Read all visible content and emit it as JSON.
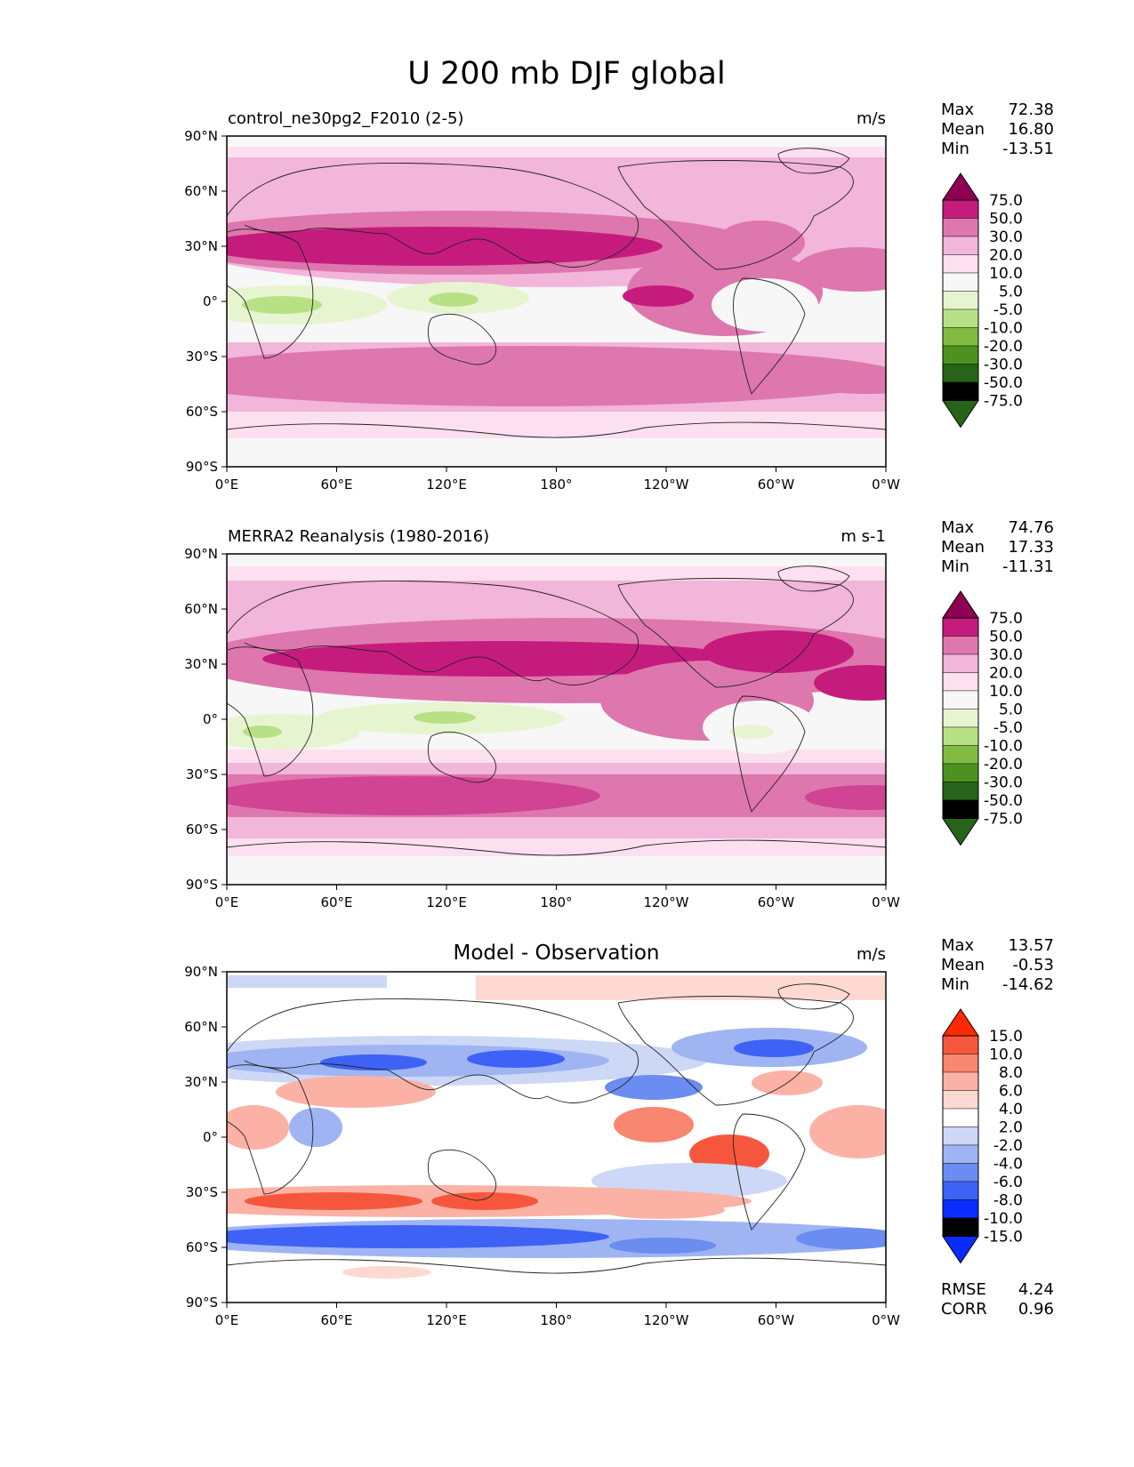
{
  "figure_title": "U 200 mb DJF global",
  "axes": {
    "lat_ticks": [
      "90°N",
      "60°N",
      "30°N",
      "0°",
      "30°S",
      "60°S",
      "90°S"
    ],
    "lon_ticks": [
      "0°E",
      "60°E",
      "120°E",
      "180°",
      "120°W",
      "60°W",
      "0°W"
    ]
  },
  "colors": {
    "pink_scale": [
      "#276419",
      "#4d9221",
      "#7fbc41",
      "#b8e186",
      "#e6f5d0",
      "#f7f7f7",
      "#fde0ef",
      "#f1b6da",
      "#de77ae",
      "#c51b7d",
      "#8e0152"
    ],
    "diff_scale": [
      "#0b2cff",
      "#3d62f5",
      "#6b8cf0",
      "#9fb4f2",
      "#cdd8f7",
      "#ffffff",
      "#fdd9d2",
      "#fbb2a5",
      "#f98670",
      "#f6573c",
      "#ff2a00"
    ],
    "coast": "#222222"
  },
  "chart_data": [
    {
      "type": "heatmap",
      "title": "control_ne30pg2_F2010 (2-5)",
      "units": "m/s",
      "stats": [
        {
          "label": "Max",
          "value": "72.38"
        },
        {
          "label": "Mean",
          "value": "16.80"
        },
        {
          "label": "Min",
          "value": "-13.51"
        }
      ],
      "colorbar_labels": [
        "75.0",
        "50.0",
        "30.0",
        "20.0",
        "10.0",
        "5.0",
        "-5.0",
        "-10.0",
        "-20.0",
        "-30.0",
        "-50.0",
        "-75.0"
      ],
      "xlim": [
        0,
        360
      ],
      "ylim": [
        -90,
        90
      ]
    },
    {
      "type": "heatmap",
      "title": "MERRA2 Reanalysis (1980-2016)",
      "units": "m s-1",
      "stats": [
        {
          "label": "Max",
          "value": "74.76"
        },
        {
          "label": "Mean",
          "value": "17.33"
        },
        {
          "label": "Min",
          "value": "-11.31"
        }
      ],
      "colorbar_labels": [
        "75.0",
        "50.0",
        "30.0",
        "20.0",
        "10.0",
        "5.0",
        "-5.0",
        "-10.0",
        "-20.0",
        "-30.0",
        "-50.0",
        "-75.0"
      ],
      "xlim": [
        0,
        360
      ],
      "ylim": [
        -90,
        90
      ]
    },
    {
      "type": "heatmap",
      "title": "Model - Observation",
      "units": "m/s",
      "stats": [
        {
          "label": "Max",
          "value": "13.57"
        },
        {
          "label": "Mean",
          "value": "-0.53"
        },
        {
          "label": "Min",
          "value": "-14.62"
        }
      ],
      "colorbar_labels": [
        "15.0",
        "10.0",
        "8.0",
        "6.0",
        "4.0",
        "2.0",
        "-2.0",
        "-4.0",
        "-6.0",
        "-8.0",
        "-10.0",
        "-15.0"
      ],
      "extra_stats": [
        {
          "label": "RMSE",
          "value": "4.24"
        },
        {
          "label": "CORR",
          "value": "0.96"
        }
      ],
      "xlim": [
        0,
        360
      ],
      "ylim": [
        -90,
        90
      ]
    }
  ]
}
